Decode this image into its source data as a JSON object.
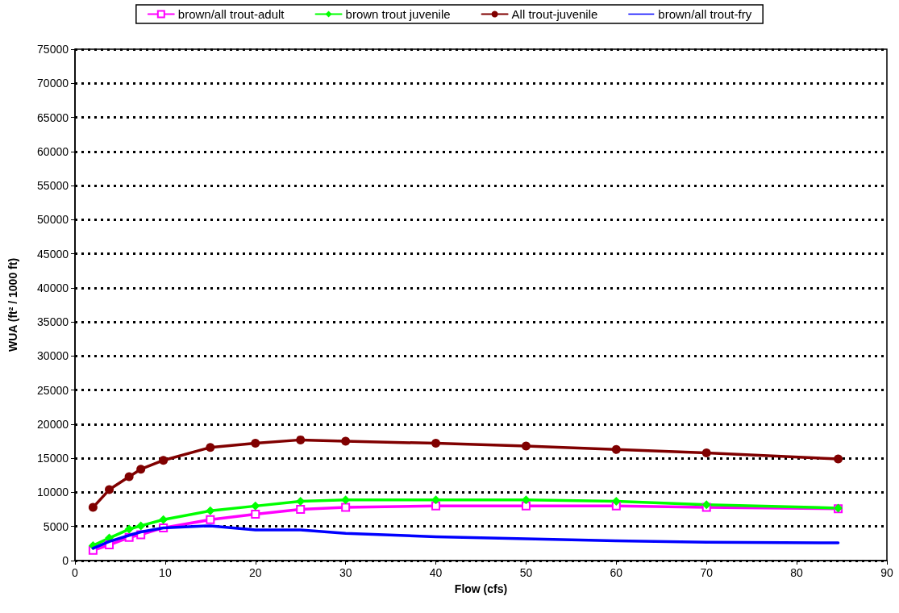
{
  "chart_data": {
    "type": "line",
    "xlabel": "Flow (cfs)",
    "ylabel": "WUA (ft² / 1000 ft)",
    "x": [
      2,
      3.8,
      6,
      7.3,
      9.8,
      15,
      20,
      25,
      30,
      40,
      50,
      60,
      70,
      84.6
    ],
    "series": [
      {
        "name": "brown/all trout-adult",
        "color": "#ff00ff",
        "marker": "square",
        "values": [
          1500,
          2300,
          3400,
          3800,
          4800,
          6000,
          6800,
          7500,
          7800,
          8000,
          8000,
          8000,
          7800,
          7600
        ]
      },
      {
        "name": "brown trout juvenile",
        "color": "#00ff00",
        "marker": "diamond",
        "values": [
          2200,
          3300,
          4600,
          5100,
          6000,
          7300,
          8000,
          8700,
          8900,
          8900,
          8900,
          8700,
          8200,
          7700
        ]
      },
      {
        "name": "All trout-juvenile",
        "color": "#800000",
        "marker": "circle",
        "values": [
          7800,
          10400,
          12300,
          13400,
          14700,
          16600,
          17200,
          17700,
          17500,
          17200,
          16800,
          16300,
          15800,
          14900
        ]
      },
      {
        "name": "brown/all trout-fry",
        "color": "#0000ff",
        "marker": "none",
        "values": [
          1800,
          2800,
          3700,
          4200,
          4800,
          5100,
          4500,
          4500,
          4000,
          3500,
          3200,
          2900,
          2700,
          2600
        ]
      }
    ],
    "xlim": [
      0,
      90
    ],
    "xticks": [
      0,
      10,
      20,
      30,
      40,
      50,
      60,
      70,
      80,
      90
    ],
    "ylim": [
      0,
      75000
    ],
    "yticks": [
      0,
      5000,
      10000,
      15000,
      20000,
      25000,
      30000,
      35000,
      40000,
      45000,
      50000,
      55000,
      60000,
      65000,
      70000,
      75000
    ],
    "grid": "y",
    "legend": "top",
    "line_style": "solid"
  }
}
